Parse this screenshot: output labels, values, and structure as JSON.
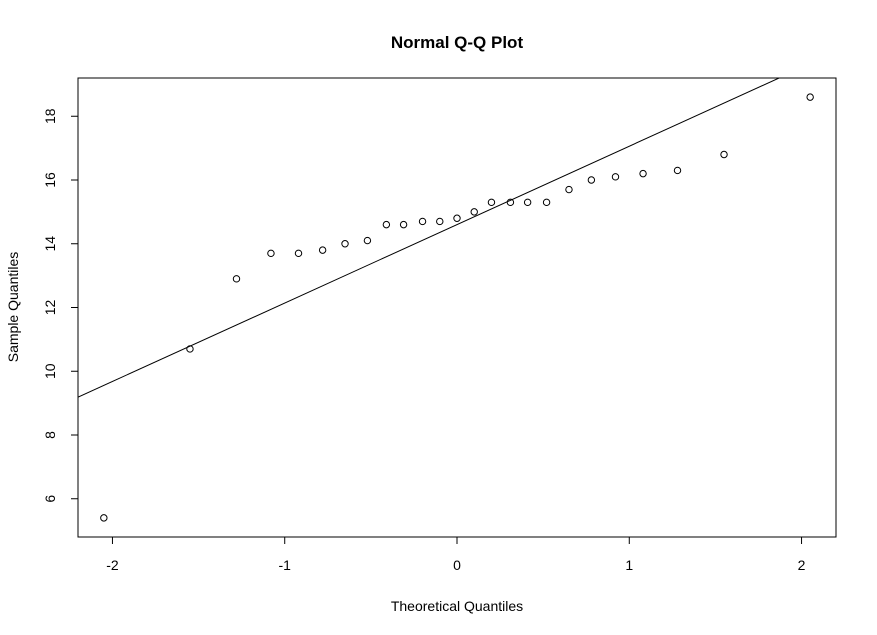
{
  "chart_data": {
    "type": "scatter",
    "title": "Normal Q-Q Plot",
    "xlabel": "Theoretical Quantiles",
    "ylabel": "Sample Quantiles",
    "xlim": [
      -2.2,
      2.2
    ],
    "ylim": [
      4.8,
      19.2
    ],
    "x_ticks": [
      -2,
      -1,
      0,
      1,
      2
    ],
    "x_tick_labels": [
      "-2",
      "-1",
      "0",
      "1",
      "2"
    ],
    "y_ticks": [
      6,
      8,
      10,
      12,
      14,
      16,
      18
    ],
    "y_tick_labels": [
      "6",
      "8",
      "10",
      "12",
      "14",
      "16",
      "18"
    ],
    "grid": false,
    "legend": "none",
    "marker": "open-circle",
    "points": [
      {
        "x": -2.05,
        "y": 5.4
      },
      {
        "x": -1.55,
        "y": 10.7
      },
      {
        "x": -1.28,
        "y": 12.9
      },
      {
        "x": -1.08,
        "y": 13.7
      },
      {
        "x": -0.92,
        "y": 13.7
      },
      {
        "x": -0.78,
        "y": 13.8
      },
      {
        "x": -0.65,
        "y": 14.0
      },
      {
        "x": -0.52,
        "y": 14.1
      },
      {
        "x": -0.41,
        "y": 14.6
      },
      {
        "x": -0.31,
        "y": 14.6
      },
      {
        "x": -0.2,
        "y": 14.7
      },
      {
        "x": -0.1,
        "y": 14.7
      },
      {
        "x": 0.0,
        "y": 14.8
      },
      {
        "x": 0.1,
        "y": 15.0
      },
      {
        "x": 0.2,
        "y": 15.3
      },
      {
        "x": 0.31,
        "y": 15.3
      },
      {
        "x": 0.41,
        "y": 15.3
      },
      {
        "x": 0.52,
        "y": 15.3
      },
      {
        "x": 0.65,
        "y": 15.7
      },
      {
        "x": 0.78,
        "y": 16.0
      },
      {
        "x": 0.92,
        "y": 16.1
      },
      {
        "x": 1.08,
        "y": 16.2
      },
      {
        "x": 1.28,
        "y": 16.3
      },
      {
        "x": 1.55,
        "y": 16.8
      },
      {
        "x": 2.05,
        "y": 18.6
      }
    ],
    "reference_line": {
      "intercept": 14.6,
      "slope": 2.46
    }
  }
}
